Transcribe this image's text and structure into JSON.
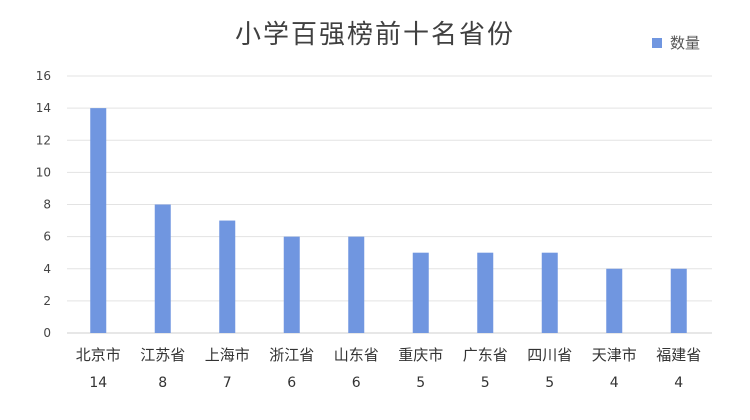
{
  "chart_data": {
    "type": "bar",
    "title": "小学百强榜前十名省份",
    "legend": [
      "数量"
    ],
    "legend_position": "top-right",
    "categories": [
      "北京市",
      "江苏省",
      "上海市",
      "浙江省",
      "山东省",
      "重庆市",
      "广东省",
      "四川省",
      "天津市",
      "福建省"
    ],
    "series": [
      {
        "name": "数量",
        "values": [
          14,
          8,
          7,
          6,
          6,
          5,
          5,
          5,
          4,
          4
        ]
      }
    ],
    "ylim": [
      0,
      16
    ],
    "yticks": [
      0,
      2,
      4,
      6,
      8,
      10,
      12,
      14,
      16
    ],
    "grid": true,
    "colors": {
      "bar": "#7096e0",
      "grid": "#e3e3e3",
      "axis": "#cfcfcf",
      "text": "#333333"
    }
  }
}
